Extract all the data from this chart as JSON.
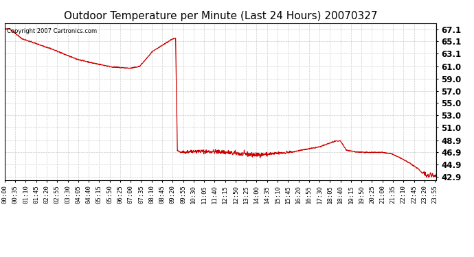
{
  "title": "Outdoor Temperature per Minute (Last 24 Hours) 20070327",
  "copyright_text": "Copyright 2007 Cartronics.com",
  "line_color": "#cc0000",
  "background_color": "#ffffff",
  "grid_color": "#cccccc",
  "ylim": [
    42.4,
    68.1
  ],
  "yticks": [
    42.9,
    44.9,
    46.9,
    48.9,
    51.0,
    53.0,
    55.0,
    57.0,
    59.0,
    61.0,
    63.1,
    65.1,
    67.1
  ],
  "xlabel": "",
  "ylabel": "",
  "title_fontsize": 11,
  "tick_fontsize": 6.5,
  "ytick_fontsize": 8.5,
  "copyright_fontsize": 6.0,
  "line_width": 0.9,
  "tick_interval_minutes": 35
}
